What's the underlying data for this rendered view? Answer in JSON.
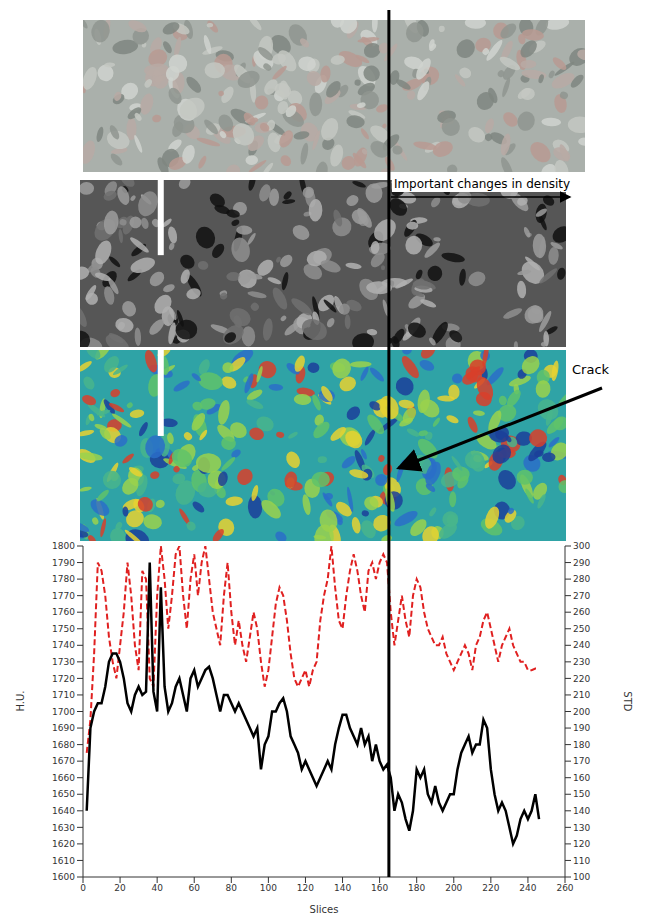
{
  "chart_data": {
    "type": "line",
    "x_label": "Slices",
    "y_label": "H.U.",
    "y2_label": "STD",
    "annotations": [
      "Important changes in density",
      "Crack"
    ],
    "vline_x": 165,
    "xlim": [
      0,
      260
    ],
    "xticks": [
      0,
      20,
      40,
      60,
      80,
      100,
      120,
      140,
      160,
      180,
      200,
      220,
      240,
      260
    ],
    "ylim": [
      1600,
      1800
    ],
    "yticks": [
      1600,
      1610,
      1620,
      1630,
      1640,
      1650,
      1660,
      1670,
      1680,
      1690,
      1700,
      1710,
      1720,
      1730,
      1740,
      1750,
      1760,
      1770,
      1780,
      1790,
      1800
    ],
    "y2lim": [
      100,
      300
    ],
    "y2ticks": [
      100,
      110,
      120,
      130,
      140,
      150,
      160,
      170,
      180,
      190,
      200,
      210,
      220,
      230,
      240,
      250,
      260,
      270,
      280,
      290,
      300
    ],
    "x": [
      2,
      4,
      6,
      8,
      10,
      12,
      14,
      16,
      18,
      20,
      22,
      24,
      26,
      28,
      30,
      32,
      34,
      36,
      38,
      40,
      42,
      44,
      46,
      48,
      50,
      52,
      54,
      56,
      58,
      60,
      62,
      64,
      66,
      68,
      70,
      72,
      74,
      76,
      78,
      80,
      82,
      84,
      86,
      88,
      90,
      92,
      94,
      96,
      98,
      100,
      102,
      104,
      106,
      108,
      110,
      112,
      114,
      116,
      118,
      120,
      122,
      124,
      126,
      128,
      130,
      132,
      134,
      136,
      138,
      140,
      142,
      144,
      146,
      148,
      150,
      152,
      154,
      156,
      158,
      160,
      162,
      164,
      166,
      168,
      170,
      172,
      174,
      176,
      178,
      180,
      182,
      184,
      186,
      188,
      190,
      192,
      194,
      196,
      198,
      200,
      202,
      204,
      206,
      208,
      210,
      212,
      214,
      216,
      218,
      220,
      222,
      224,
      226,
      228,
      230,
      232,
      234,
      236,
      238,
      240,
      242,
      244,
      246
    ],
    "series": [
      {
        "name": "H.U.",
        "color": "#000000",
        "line_style": "solid",
        "axis": "y",
        "values": [
          1640,
          1690,
          1700,
          1705,
          1705,
          1715,
          1730,
          1735,
          1735,
          1730,
          1720,
          1705,
          1700,
          1710,
          1715,
          1710,
          1712,
          1790,
          1712,
          1700,
          1775,
          1715,
          1700,
          1705,
          1715,
          1720,
          1710,
          1700,
          1720,
          1725,
          1715,
          1720,
          1725,
          1727,
          1720,
          1710,
          1700,
          1710,
          1710,
          1705,
          1700,
          1705,
          1700,
          1695,
          1690,
          1685,
          1690,
          1665,
          1680,
          1685,
          1700,
          1700,
          1705,
          1708,
          1700,
          1685,
          1680,
          1675,
          1665,
          1670,
          1665,
          1660,
          1655,
          1660,
          1665,
          1670,
          1665,
          1680,
          1690,
          1698,
          1698,
          1690,
          1685,
          1680,
          1690,
          1680,
          1685,
          1670,
          1680,
          1670,
          1665,
          1668,
          1660,
          1640,
          1650,
          1645,
          1635,
          1628,
          1640,
          1665,
          1660,
          1665,
          1650,
          1645,
          1655,
          1645,
          1640,
          1645,
          1650,
          1650,
          1665,
          1675,
          1680,
          1685,
          1675,
          1680,
          1680,
          1695,
          1690,
          1665,
          1650,
          1640,
          1645,
          1640,
          1630,
          1620,
          1625,
          1635,
          1640,
          1635,
          1640,
          1650,
          1635
        ]
      },
      {
        "name": "STD",
        "color": "#e02020",
        "line_style": "dashed",
        "axis": "y2",
        "values": [
          175,
          195,
          235,
          290,
          285,
          270,
          245,
          230,
          220,
          240,
          260,
          290,
          270,
          240,
          225,
          285,
          280,
          220,
          215,
          270,
          300,
          280,
          250,
          270,
          295,
          300,
          270,
          250,
          280,
          295,
          270,
          290,
          300,
          280,
          260,
          250,
          240,
          270,
          290,
          260,
          240,
          255,
          240,
          230,
          245,
          260,
          250,
          230,
          215,
          225,
          245,
          265,
          275,
          270,
          255,
          235,
          220,
          215,
          220,
          225,
          215,
          225,
          230,
          255,
          270,
          280,
          300,
          275,
          255,
          250,
          270,
          285,
          295,
          285,
          270,
          260,
          285,
          290,
          280,
          290,
          295,
          290,
          260,
          240,
          255,
          270,
          255,
          245,
          270,
          280,
          275,
          260,
          250,
          245,
          240,
          240,
          245,
          235,
          230,
          225,
          230,
          235,
          240,
          235,
          225,
          240,
          245,
          255,
          260,
          250,
          240,
          230,
          240,
          245,
          250,
          240,
          235,
          230,
          230,
          225,
          225,
          226,
          226
        ]
      }
    ]
  }
}
